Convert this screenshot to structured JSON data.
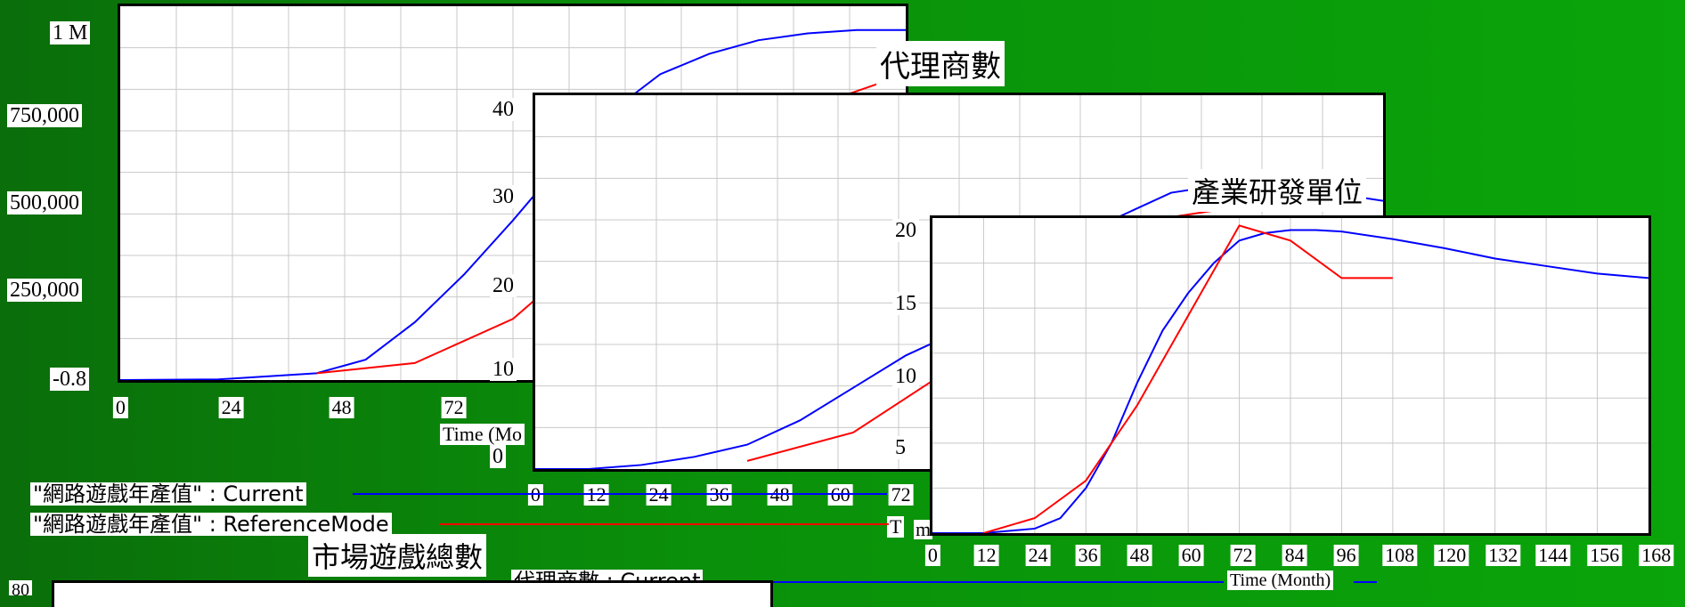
{
  "chart_data": [
    {
      "type": "line",
      "title": "",
      "xlabel": "Time (Month)",
      "ylabel": "",
      "xlim": [
        0,
        96
      ],
      "ylim": [
        -0.8,
        1100000
      ],
      "x_ticks": [
        "0",
        "24",
        "48",
        "72"
      ],
      "y_ticks": [
        "1 M",
        "750,000",
        "500,000",
        "250,000",
        "-0.8"
      ],
      "series": [
        {
          "name": "\"網路遊戲年產值\" : Current",
          "color": "#0000ff",
          "x": [
            0,
            12,
            24,
            30,
            36,
            42,
            48,
            54,
            60,
            66,
            72,
            78,
            84,
            90,
            96
          ],
          "y": [
            0,
            2000,
            20000,
            60000,
            170000,
            310000,
            470000,
            640000,
            790000,
            900000,
            960000,
            1000000,
            1020000,
            1030000,
            1030000
          ]
        },
        {
          "name": "\"網路遊戲年產值\" : ReferenceMode",
          "color": "#ff0000",
          "x": [
            24,
            36,
            48,
            60,
            72,
            84,
            96
          ],
          "y": [
            20000,
            50000,
            180000,
            430000,
            740000,
            800000,
            900000
          ]
        }
      ]
    },
    {
      "type": "line",
      "title": "代理商數",
      "xlabel": "Time (Month)",
      "ylabel": "",
      "xlim": [
        0,
        96
      ],
      "ylim": [
        0,
        46
      ],
      "x_ticks": [
        "0",
        "12",
        "24",
        "36",
        "48",
        "60",
        "72"
      ],
      "y_ticks": [
        "40",
        "30",
        "20",
        "10",
        "0"
      ],
      "series": [
        {
          "name": "代理商數 : Current",
          "color": "#0000ff",
          "x": [
            0,
            6,
            12,
            18,
            24,
            30,
            36,
            42,
            48,
            54,
            60,
            66,
            72,
            78,
            84,
            90,
            96
          ],
          "y": [
            0,
            0,
            0.5,
            1.5,
            3,
            6,
            10,
            14,
            17,
            22,
            27,
            31,
            34,
            35,
            35,
            34,
            33
          ]
        },
        {
          "name": "代理商數 : ReferenceMode",
          "color": "#ff0000",
          "x": [
            24,
            36,
            48,
            60,
            72,
            84
          ],
          "y": [
            1,
            4.5,
            13,
            23,
            31,
            33
          ]
        }
      ]
    },
    {
      "type": "line",
      "title": "產業研發單位",
      "xlabel": "Time (Month)",
      "ylabel": "",
      "xlim": [
        0,
        168
      ],
      "ylim": [
        0,
        21
      ],
      "x_ticks": [
        "0",
        "12",
        "24",
        "36",
        "48",
        "60",
        "72",
        "84",
        "96",
        "108",
        "120",
        "132",
        "144",
        "156",
        "168"
      ],
      "y_ticks": [
        "20",
        "15",
        "10",
        "5",
        "0"
      ],
      "series": [
        {
          "name": "產業研發單位 : Current",
          "color": "#0000ff",
          "x": [
            0,
            12,
            24,
            30,
            36,
            42,
            48,
            54,
            60,
            66,
            72,
            78,
            84,
            90,
            96,
            108,
            120,
            132,
            144,
            156,
            168
          ],
          "y": [
            0,
            0,
            0.3,
            1,
            3,
            6,
            10,
            13.5,
            16,
            18,
            19.5,
            20,
            20.2,
            20.2,
            20.1,
            19.6,
            19,
            18.3,
            17.8,
            17.3,
            17
          ]
        },
        {
          "name": "產業研發單位 : ReferenceMode",
          "color": "#ff0000",
          "x": [
            12,
            24,
            36,
            48,
            60,
            72,
            84,
            96,
            108
          ],
          "y": [
            0,
            1,
            3.5,
            8.5,
            14.5,
            20.5,
            19.5,
            17,
            17
          ]
        }
      ]
    }
  ],
  "legend": {
    "current_label": "\"網路遊戲年產值\" : Current",
    "reference_label": "\"網路遊戲年產值\" : ReferenceMode",
    "current_color": "#0000ff",
    "reference_color": "#ff0000"
  },
  "misc": {
    "bottom_title": "市場遊戲總數",
    "bottom_ytick": "80",
    "partial_series_label": "代理商數 : Current",
    "time_fragment_1": "Time (Mo",
    "time_fragment_2": "T",
    "time_fragment_3": "m",
    "time_fragment_4": "Time (Month)"
  }
}
